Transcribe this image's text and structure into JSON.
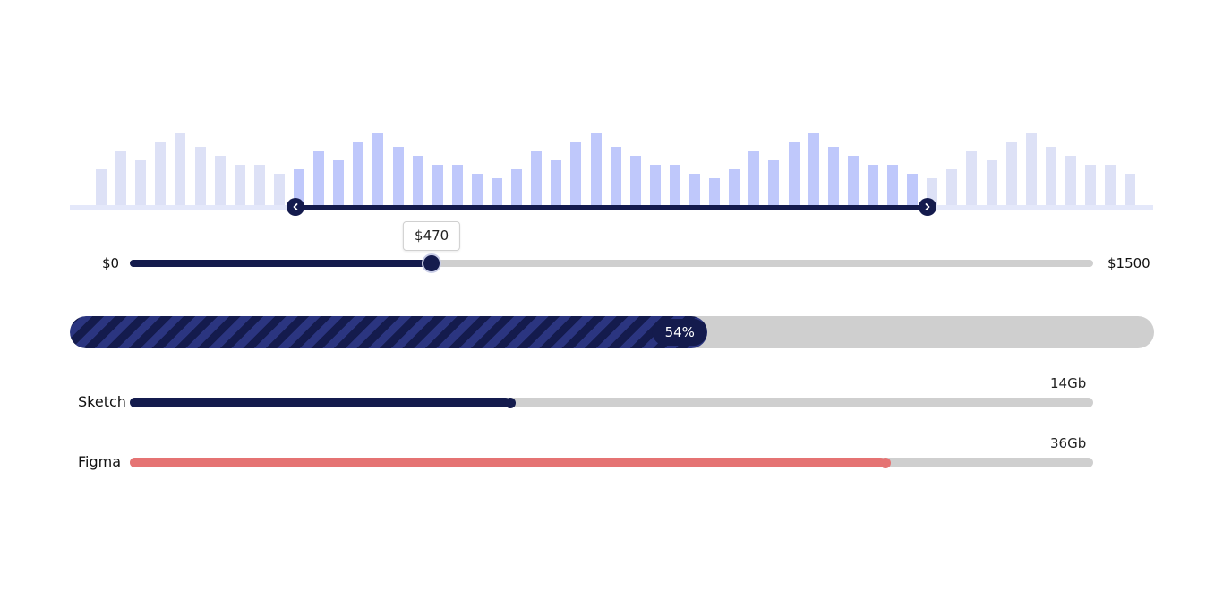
{
  "colors": {
    "primary": "#141b4d",
    "bar_active": "#bfc8fb",
    "bar_inactive": "#dde1f6",
    "track": "#cfcfcf",
    "figma": "#e57373"
  },
  "histogram": {
    "bars": [
      40,
      60,
      50,
      70,
      80,
      65,
      55,
      45,
      45,
      35,
      40,
      60,
      50,
      70,
      80,
      65,
      55,
      45,
      45,
      35,
      30,
      40,
      60,
      50,
      70,
      80,
      65,
      55,
      45,
      45,
      35,
      30,
      40,
      60,
      50,
      70,
      80,
      65,
      55,
      45,
      45,
      35,
      30,
      40,
      60,
      50,
      70,
      80,
      65,
      55,
      45,
      45,
      35
    ],
    "range_start_fraction": 0.208,
    "range_end_fraction": 0.792,
    "left_handle_icon": "chevron-left-icon",
    "right_handle_icon": "chevron-right-icon"
  },
  "price_slider": {
    "min_label": "$0",
    "max_label": "$1500",
    "min": 0,
    "max": 1500,
    "value": 470,
    "tooltip": "$470"
  },
  "progress": {
    "percent": 54,
    "label": "54%"
  },
  "storage": [
    {
      "name": "Sketch",
      "value_label": "14Gb",
      "fraction": 0.395,
      "color": "#141b4d"
    },
    {
      "name": "Figma",
      "value_label": "36Gb",
      "fraction": 0.784,
      "color": "#e57373"
    }
  ]
}
